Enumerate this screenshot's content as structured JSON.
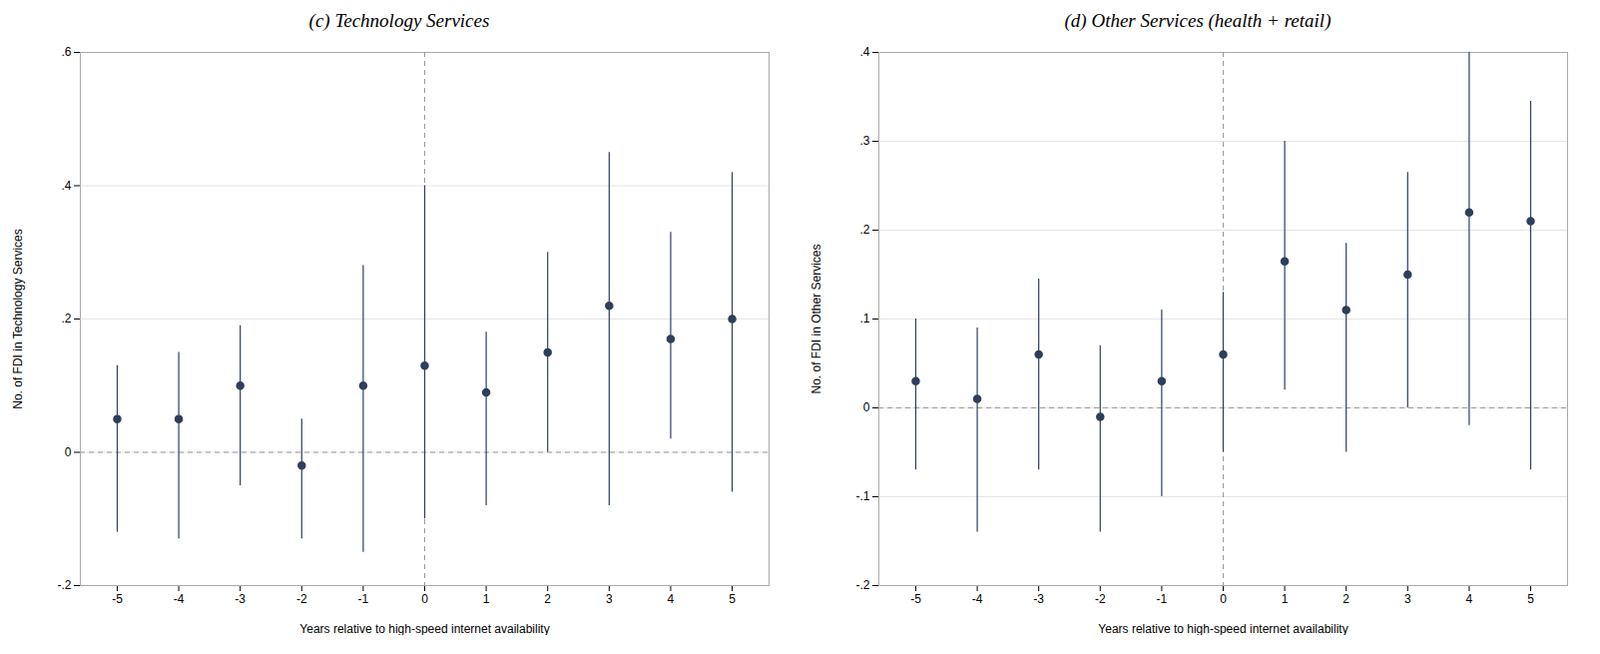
{
  "chart_data": [
    {
      "type": "scatter",
      "title": "(c) Technology Services",
      "xlabel": "Years relative to high-speed internet availability",
      "ylabel": "No. of FDI in Technology Services",
      "x": [
        -5,
        -4,
        -3,
        -2,
        -1,
        0,
        1,
        2,
        3,
        4,
        5
      ],
      "values": [
        0.05,
        0.05,
        0.1,
        -0.02,
        0.1,
        0.13,
        0.09,
        0.15,
        0.22,
        0.17,
        0.2
      ],
      "y_lo": [
        -0.12,
        -0.13,
        -0.05,
        -0.13,
        -0.15,
        -0.1,
        -0.08,
        0.0,
        -0.08,
        0.02,
        -0.06
      ],
      "y_hi": [
        0.13,
        0.15,
        0.19,
        0.05,
        0.28,
        0.4,
        0.18,
        0.3,
        0.45,
        0.33,
        0.42
      ],
      "color": "#2e3f5c",
      "marker": "o",
      "reference_lines": {
        "x": [
          0
        ],
        "y": [
          0
        ]
      },
      "xlim": [
        -5.6,
        5.6
      ],
      "xticks": [
        -5,
        -4,
        -3,
        -2,
        -1,
        0,
        1,
        2,
        3,
        4,
        5
      ],
      "ylim": [
        -0.2,
        0.6
      ],
      "yticks": [
        {
          "value": -0.2,
          "label": "-.2"
        },
        0,
        {
          "value": 0.2,
          "label": ".2"
        },
        {
          "value": 0.4,
          "label": ".4"
        },
        {
          "value": 0.6,
          "label": ".6"
        }
      ],
      "grid": true
    },
    {
      "type": "scatter",
      "title": "(d) Other Services (health + retail)",
      "xlabel": "Years relative to high-speed internet availability",
      "ylabel": "No. of FDI in Other Services",
      "x": [
        -5,
        -4,
        -3,
        -2,
        -1,
        0,
        1,
        2,
        3,
        4,
        5
      ],
      "values": [
        0.03,
        0.01,
        0.06,
        -0.01,
        0.03,
        0.06,
        0.165,
        0.11,
        0.15,
        0.22,
        0.21
      ],
      "y_lo": [
        -0.07,
        -0.14,
        -0.07,
        -0.14,
        -0.1,
        -0.05,
        0.02,
        -0.05,
        0.0,
        -0.02,
        -0.07
      ],
      "y_hi": [
        0.1,
        0.09,
        0.145,
        0.07,
        0.11,
        0.13,
        0.3,
        0.185,
        0.265,
        0.4,
        0.345
      ],
      "color": "#2e3f5c",
      "marker": "o",
      "reference_lines": {
        "x": [
          0
        ],
        "y": [
          0
        ]
      },
      "xlim": [
        -5.6,
        5.6
      ],
      "xticks": [
        -5,
        -4,
        -3,
        -2,
        -1,
        0,
        1,
        2,
        3,
        4,
        5
      ],
      "ylim": [
        -0.2,
        0.4
      ],
      "yticks": [
        {
          "value": -0.2,
          "label": "-.2"
        },
        {
          "value": -0.1,
          "label": "-.1"
        },
        0,
        {
          "value": 0.1,
          "label": ".1"
        },
        {
          "value": 0.2,
          "label": ".2"
        },
        {
          "value": 0.3,
          "label": ".3"
        },
        {
          "value": 0.4,
          "label": ".4"
        }
      ],
      "grid": true
    }
  ]
}
